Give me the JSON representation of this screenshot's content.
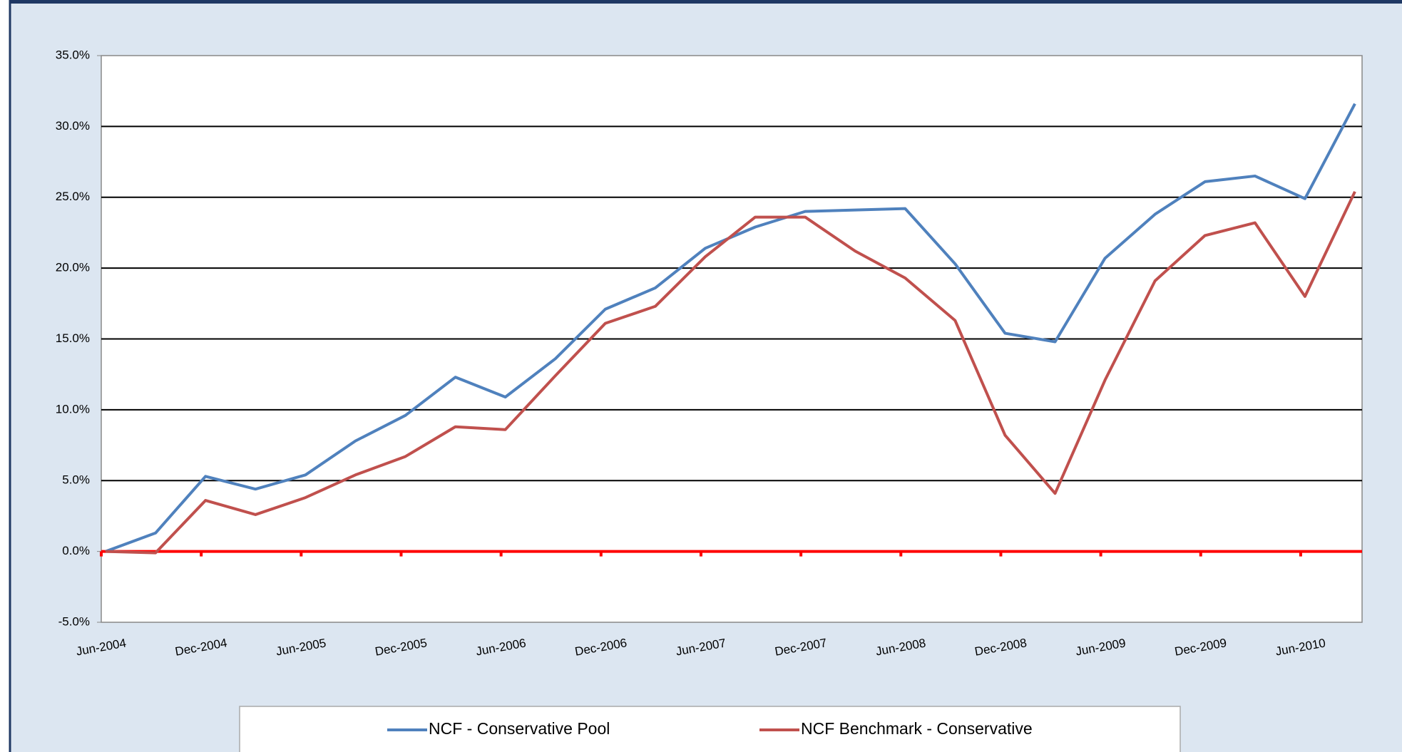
{
  "chart_data": {
    "type": "line",
    "categories": [
      "Jun-2004",
      null,
      "Dec-2004",
      null,
      "Jun-2005",
      null,
      "Dec-2005",
      null,
      "Jun-2006",
      null,
      "Dec-2006",
      null,
      "Jun-2007",
      null,
      "Dec-2007",
      null,
      "Jun-2008",
      null,
      "Dec-2008",
      null,
      "Jun-2009",
      null,
      "Dec-2009",
      null,
      "Jun-2010",
      null
    ],
    "series": [
      {
        "name": "NCF - Conservative Pool",
        "color": "#4f81bd",
        "values": [
          0,
          1.3,
          5.3,
          4.4,
          5.4,
          7.8,
          9.6,
          12.3,
          10.9,
          13.6,
          17.1,
          18.6,
          21.4,
          22.9,
          24.0,
          24.1,
          24.2,
          20.3,
          15.4,
          14.8,
          20.7,
          23.8,
          26.1,
          26.5,
          24.9,
          31.6
        ]
      },
      {
        "name": "NCF Benchmark - Conservative",
        "color": "#c0504d",
        "values": [
          0,
          -0.1,
          3.6,
          2.6,
          3.8,
          5.4,
          6.7,
          8.8,
          8.6,
          12.4,
          16.1,
          17.3,
          20.8,
          23.6,
          23.6,
          21.2,
          19.3,
          16.3,
          8.2,
          4.1,
          12.1,
          19.1,
          22.3,
          23.2,
          18.0,
          25.4
        ]
      }
    ],
    "ylim": [
      -5,
      35
    ],
    "yticks": [
      {
        "value": -5,
        "label": "-5.0%"
      },
      {
        "value": 0,
        "label": "0.0%"
      },
      {
        "value": 5,
        "label": "5.0%"
      },
      {
        "value": 10,
        "label": "10.0%"
      },
      {
        "value": 15,
        "label": "15.0%"
      },
      {
        "value": 20,
        "label": "20.0%"
      },
      {
        "value": 25,
        "label": "25.0%"
      },
      {
        "value": 30,
        "label": "30.0%"
      },
      {
        "value": 35,
        "label": "35.0%"
      }
    ],
    "grid": true,
    "zero_line_color": "#ff0000",
    "legend": "bottom"
  }
}
